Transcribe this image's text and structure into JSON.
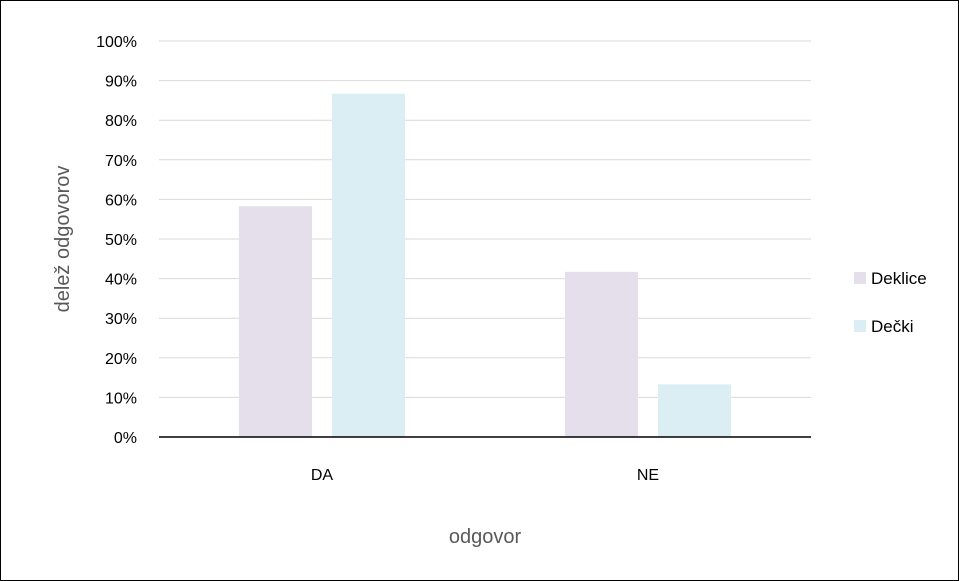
{
  "chart_data": {
    "type": "bar",
    "title": "",
    "xlabel": "odgovor",
    "ylabel": "delež odgovorov",
    "categories": [
      "DA",
      "NE"
    ],
    "ylim": [
      0,
      100
    ],
    "y_tick_values": [
      0,
      10,
      20,
      30,
      40,
      50,
      60,
      70,
      80,
      90,
      100
    ],
    "y_tick_labels": [
      "0%",
      "10%",
      "20%",
      "30%",
      "40%",
      "50%",
      "60%",
      "70%",
      "80%",
      "90%",
      "100%"
    ],
    "grid": true,
    "legend_position": "right",
    "series": [
      {
        "name": "Deklice",
        "color": "#e5dfeb",
        "values": [
          58.3,
          41.7
        ]
      },
      {
        "name": "Dečki",
        "color": "#daeef3",
        "values": [
          86.7,
          13.3
        ]
      }
    ]
  }
}
